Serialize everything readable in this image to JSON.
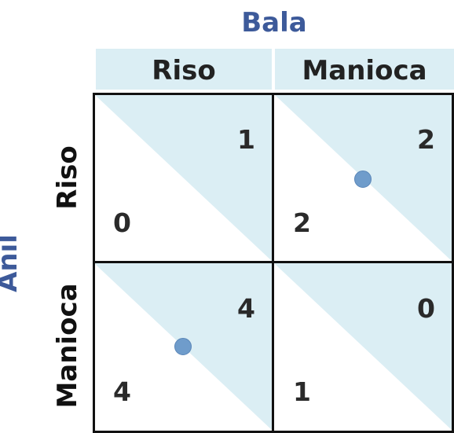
{
  "column_player": "Bala",
  "row_player": "Anil",
  "columns": [
    "Riso",
    "Manioca"
  ],
  "rows": [
    "Riso",
    "Manioca"
  ],
  "cells": [
    [
      {
        "row_payoff": "0",
        "col_payoff": "1",
        "equilibrium": false
      },
      {
        "row_payoff": "2",
        "col_payoff": "2",
        "equilibrium": true
      }
    ],
    [
      {
        "row_payoff": "4",
        "col_payoff": "4",
        "equilibrium": true
      },
      {
        "row_payoff": "1",
        "col_payoff": "0",
        "equilibrium": false
      }
    ]
  ],
  "colors": {
    "shade": "#dbeef4",
    "title": "#3d5a9a",
    "dot": "#6f9ccb"
  }
}
